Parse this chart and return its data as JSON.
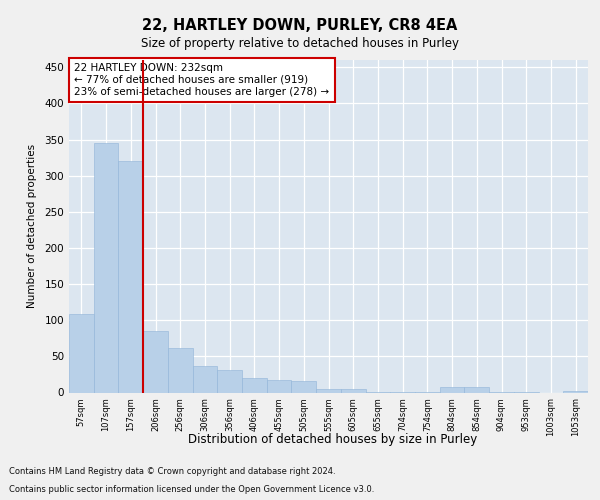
{
  "title": "22, HARTLEY DOWN, PURLEY, CR8 4EA",
  "subtitle": "Size of property relative to detached houses in Purley",
  "xlabel": "Distribution of detached houses by size in Purley",
  "ylabel": "Number of detached properties",
  "fig_bg_color": "#f0f0f0",
  "plot_bg_color": "#dce6f0",
  "bar_color": "#b8d0e8",
  "bar_edge_color": "#90b4d8",
  "grid_color": "#ffffff",
  "vline_color": "#cc0000",
  "vline_index": 2.5,
  "annotation_text": "22 HARTLEY DOWN: 232sqm\n← 77% of detached houses are smaller (919)\n23% of semi-detached houses are larger (278) →",
  "annotation_border_color": "#cc0000",
  "footnote_line1": "Contains HM Land Registry data © Crown copyright and database right 2024.",
  "footnote_line2": "Contains public sector information licensed under the Open Government Licence v3.0.",
  "categories": [
    "57sqm",
    "107sqm",
    "157sqm",
    "206sqm",
    "256sqm",
    "306sqm",
    "356sqm",
    "406sqm",
    "455sqm",
    "505sqm",
    "555sqm",
    "605sqm",
    "655sqm",
    "704sqm",
    "754sqm",
    "804sqm",
    "854sqm",
    "904sqm",
    "953sqm",
    "1003sqm",
    "1053sqm"
  ],
  "values": [
    109,
    345,
    320,
    85,
    62,
    36,
    31,
    20,
    17,
    16,
    5,
    5,
    1,
    1,
    1,
    8,
    8,
    1,
    1,
    0,
    2
  ],
  "ylim": [
    0,
    460
  ],
  "yticks": [
    0,
    50,
    100,
    150,
    200,
    250,
    300,
    350,
    400,
    450
  ]
}
